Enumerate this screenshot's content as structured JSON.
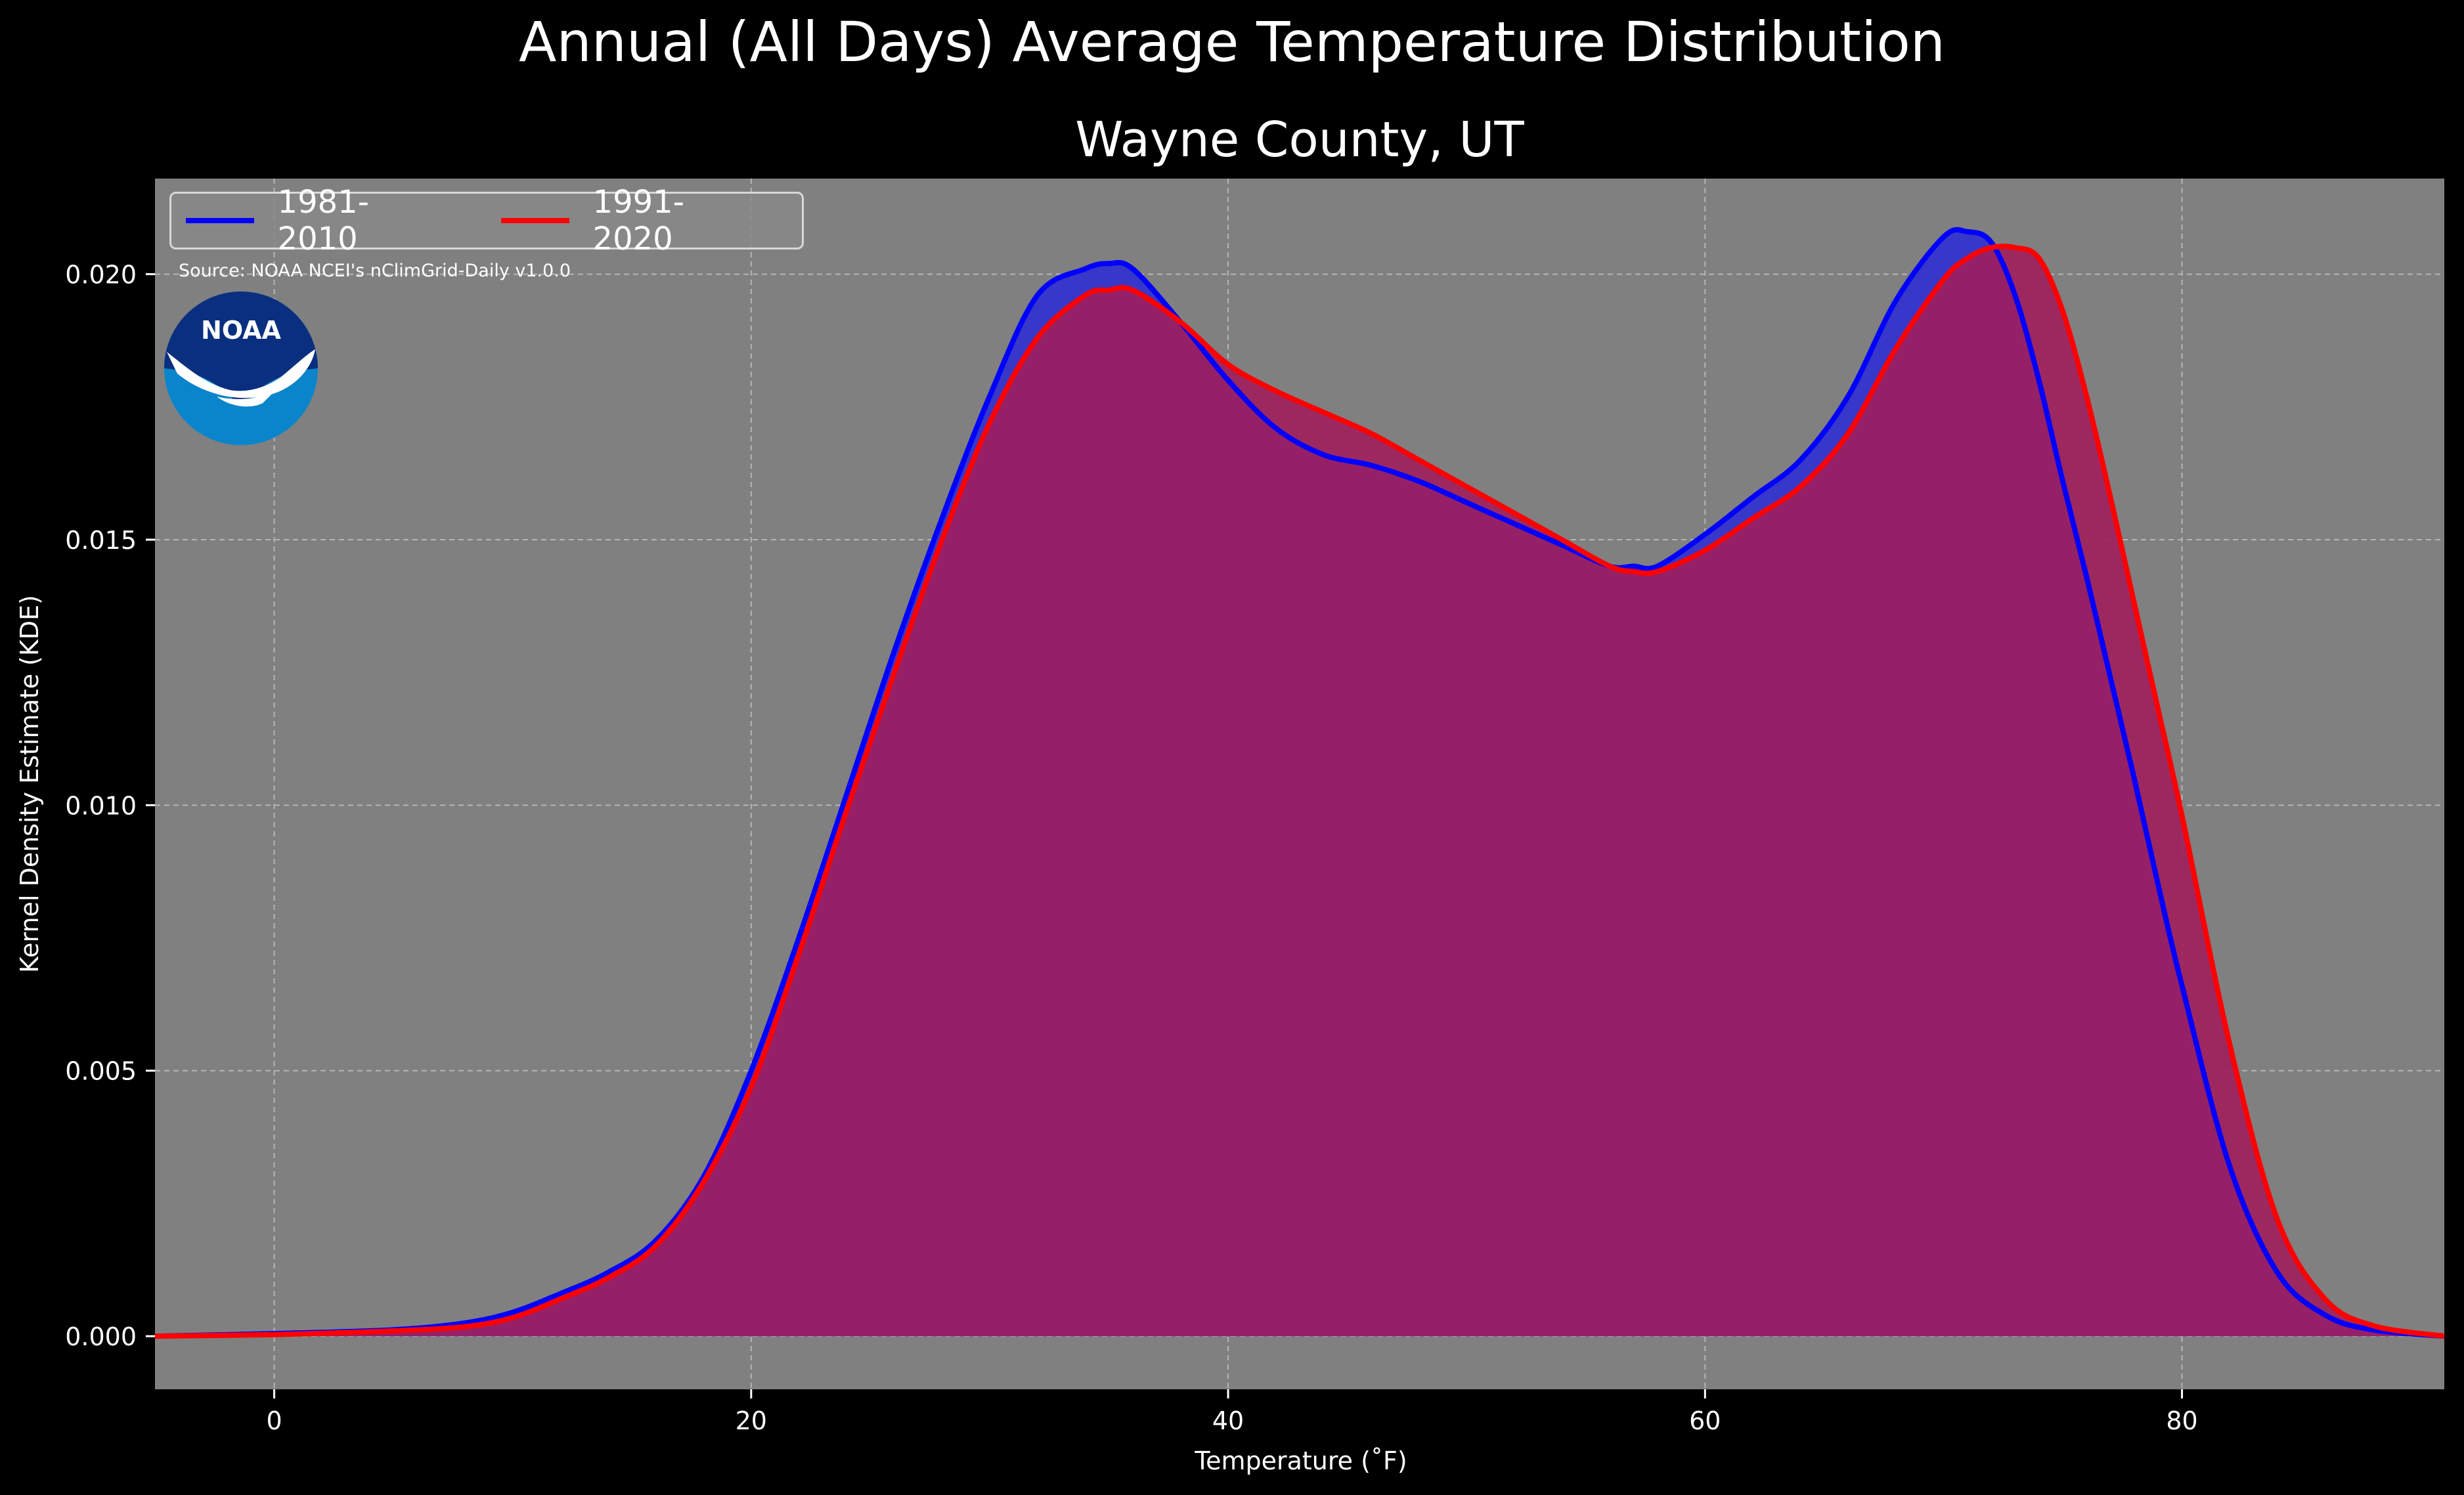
{
  "suptitle": "Annual (All Days) Average Temperature Distribution",
  "source_note": "Source: NOAA NCEI's nClimGrid-Daily v1.0.0",
  "logo": {
    "icon": "noaa-logo-icon",
    "text": "NOAA"
  },
  "colors": {
    "figure_bg": "#000000",
    "axes_bg": "#808080",
    "series_1981": "#0000ff",
    "series_1991": "#ff0000",
    "fill_1981": "#3333cc",
    "fill_1991": "#a01e5c"
  },
  "chart_data": {
    "type": "area",
    "title": "Wayne County, UT",
    "xlabel": "Temperature (˚F)",
    "ylabel": "Kernel Density Estimate (KDE)",
    "xlim": [
      -5,
      91
    ],
    "ylim": [
      -0.001,
      0.0218
    ],
    "xticks": [
      0,
      20,
      40,
      60,
      80
    ],
    "xtick_labels": [
      "0",
      "20",
      "40",
      "60",
      "80"
    ],
    "yticks": [
      0.0,
      0.005,
      0.01,
      0.015,
      0.02
    ],
    "ytick_labels": [
      "0.000",
      "0.005",
      "0.010",
      "0.015",
      "0.020"
    ],
    "grid": true,
    "legend_position": "upper-left",
    "x": [
      -5,
      0,
      5,
      8,
      10,
      12,
      14,
      16,
      18,
      20,
      22,
      24,
      26,
      28,
      30,
      32,
      34,
      35,
      36,
      38,
      40,
      42,
      44,
      46,
      48,
      50,
      52,
      54,
      56,
      57,
      58,
      60,
      62,
      64,
      66,
      68,
      70,
      71,
      72,
      73,
      74,
      75,
      76,
      77,
      78,
      79,
      80,
      82,
      84,
      86,
      88,
      91
    ],
    "series": [
      {
        "name": "1981-2010",
        "values": [
          0.0,
          5e-05,
          0.00012,
          0.00025,
          0.00045,
          0.0008,
          0.0012,
          0.0018,
          0.003,
          0.005,
          0.0075,
          0.0102,
          0.0129,
          0.0154,
          0.0177,
          0.0196,
          0.0201,
          0.0202,
          0.0201,
          0.0191,
          0.018,
          0.0171,
          0.0166,
          0.0164,
          0.0161,
          0.0157,
          0.0153,
          0.0149,
          0.0145,
          0.0145,
          0.0145,
          0.0151,
          0.0158,
          0.0165,
          0.0177,
          0.0195,
          0.0207,
          0.0208,
          0.0206,
          0.0196,
          0.018,
          0.0161,
          0.0143,
          0.0124,
          0.0105,
          0.0085,
          0.0066,
          0.0032,
          0.0012,
          0.0004,
          0.00012,
          0.0
        ]
      },
      {
        "name": "1991-2020",
        "values": [
          0.0,
          3e-05,
          0.0001,
          0.00018,
          0.00035,
          0.0007,
          0.0011,
          0.0017,
          0.0029,
          0.0047,
          0.0072,
          0.0099,
          0.0125,
          0.015,
          0.0172,
          0.0188,
          0.0196,
          0.0197,
          0.0197,
          0.0191,
          0.0183,
          0.0178,
          0.0174,
          0.017,
          0.0165,
          0.016,
          0.0155,
          0.015,
          0.0145,
          0.0144,
          0.0144,
          0.0148,
          0.0154,
          0.016,
          0.017,
          0.0186,
          0.0199,
          0.0203,
          0.0205,
          0.0205,
          0.0203,
          0.0193,
          0.0177,
          0.0158,
          0.0138,
          0.0118,
          0.0098,
          0.0055,
          0.0022,
          0.0007,
          0.0002,
          0.0
        ]
      }
    ]
  }
}
